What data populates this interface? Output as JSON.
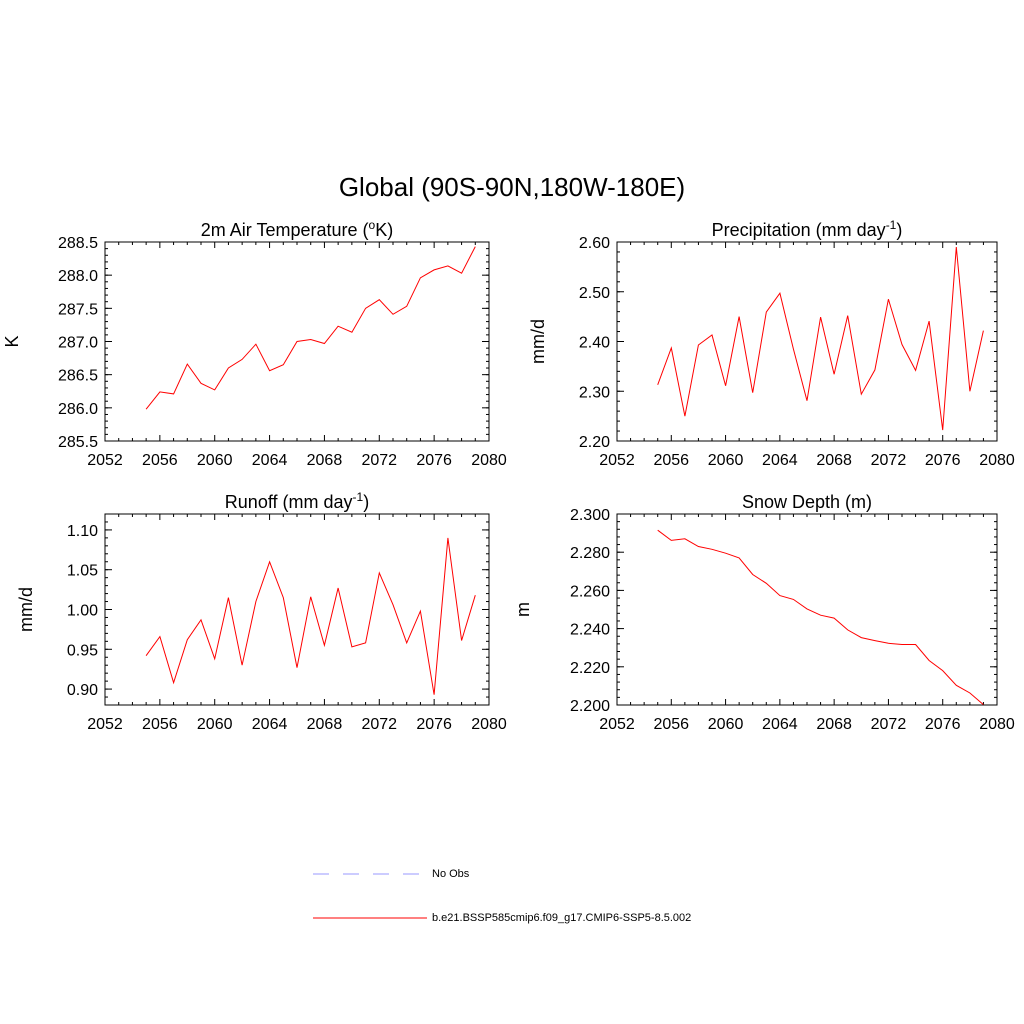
{
  "figure_title": "Global (90S-90N,180W-180E)",
  "legend": [
    {
      "label": "No Obs",
      "color": "#9999ff",
      "style": "dashed"
    },
    {
      "label": "b.e21.BSSP585cmip6.f09_g17.CMIP6-SSP5-8.5.002",
      "color": "#ff0000",
      "style": "solid"
    }
  ],
  "chart_data": [
    {
      "type": "line",
      "title": "2m Air Temperature (",
      "title_sup": "o",
      "title_end": "K)",
      "ylabel": "K",
      "xlim": [
        2052,
        2080
      ],
      "ylim": [
        285.5,
        288.5
      ],
      "xticks": [
        2052,
        2056,
        2060,
        2064,
        2068,
        2072,
        2076,
        2080
      ],
      "yticks": [
        "285.5",
        "286.0",
        "286.5",
        "287.0",
        "287.5",
        "288.0",
        "288.5"
      ],
      "x": [
        2055,
        2056,
        2057,
        2058,
        2059,
        2060,
        2061,
        2062,
        2063,
        2064,
        2065,
        2066,
        2067,
        2068,
        2069,
        2070,
        2071,
        2072,
        2073,
        2074,
        2075,
        2076,
        2077,
        2078,
        2079
      ],
      "series": [
        {
          "values": [
            285.98,
            286.24,
            286.21,
            286.66,
            286.37,
            286.27,
            286.6,
            286.73,
            286.96,
            286.56,
            286.65,
            287.0,
            287.03,
            286.97,
            287.23,
            287.14,
            287.5,
            287.63,
            287.41,
            287.53,
            287.96,
            288.08,
            288.14,
            288.03,
            288.43
          ],
          "color": "#ff0000"
        }
      ]
    },
    {
      "type": "line",
      "title": "Precipitation (mm day",
      "title_sup": "-1",
      "title_end": ")",
      "ylabel": "mm/d",
      "xlim": [
        2052,
        2080
      ],
      "ylim": [
        2.2,
        2.6
      ],
      "xticks": [
        2052,
        2056,
        2060,
        2064,
        2068,
        2072,
        2076,
        2080
      ],
      "yticks": [
        "2.20",
        "2.30",
        "2.40",
        "2.50",
        "2.60"
      ],
      "x": [
        2055,
        2056,
        2057,
        2058,
        2059,
        2060,
        2061,
        2062,
        2063,
        2064,
        2065,
        2066,
        2067,
        2068,
        2069,
        2070,
        2071,
        2072,
        2073,
        2074,
        2075,
        2076,
        2077,
        2078,
        2079
      ],
      "series": [
        {
          "values": [
            2.313,
            2.387,
            2.25,
            2.393,
            2.413,
            2.311,
            2.45,
            2.297,
            2.459,
            2.497,
            2.385,
            2.281,
            2.449,
            2.334,
            2.452,
            2.294,
            2.343,
            2.485,
            2.394,
            2.342,
            2.441,
            2.222,
            2.59,
            2.3,
            2.422
          ],
          "color": "#ff0000"
        }
      ]
    },
    {
      "type": "line",
      "title": "Runoff (mm day",
      "title_sup": "-1",
      "title_end": ")",
      "ylabel": "mm/d",
      "xlim": [
        2052,
        2080
      ],
      "ylim": [
        0.88,
        1.12
      ],
      "xticks": [
        2052,
        2056,
        2060,
        2064,
        2068,
        2072,
        2076,
        2080
      ],
      "yticks": [
        "0.90",
        "0.95",
        "1.00",
        "1.05",
        "1.10"
      ],
      "ytick_values": [
        0.9,
        0.95,
        1.0,
        1.05,
        1.1
      ],
      "x": [
        2055,
        2056,
        2057,
        2058,
        2059,
        2060,
        2061,
        2062,
        2063,
        2064,
        2065,
        2066,
        2067,
        2068,
        2069,
        2070,
        2071,
        2072,
        2073,
        2074,
        2075,
        2076,
        2077,
        2078,
        2079
      ],
      "series": [
        {
          "values": [
            0.942,
            0.966,
            0.908,
            0.962,
            0.987,
            0.938,
            1.015,
            0.93,
            1.01,
            1.06,
            1.015,
            0.927,
            1.016,
            0.955,
            1.027,
            0.953,
            0.958,
            1.046,
            1.006,
            0.958,
            0.998,
            0.893,
            1.09,
            0.961,
            1.018
          ],
          "color": "#ff0000"
        }
      ]
    },
    {
      "type": "line",
      "title": "Snow Depth (m)",
      "title_sup": "",
      "title_end": "",
      "ylabel": "m",
      "xlim": [
        2052,
        2080
      ],
      "ylim": [
        2.2,
        2.3
      ],
      "xticks": [
        2052,
        2056,
        2060,
        2064,
        2068,
        2072,
        2076,
        2080
      ],
      "yticks": [
        "2.200",
        "2.220",
        "2.240",
        "2.260",
        "2.280",
        "2.300"
      ],
      "x": [
        2055,
        2056,
        2057,
        2058,
        2059,
        2060,
        2061,
        2062,
        2063,
        2064,
        2065,
        2066,
        2067,
        2068,
        2069,
        2070,
        2071,
        2072,
        2073,
        2074,
        2075,
        2076,
        2077,
        2078,
        2079
      ],
      "series": [
        {
          "values": [
            2.2915,
            2.2862,
            2.287,
            2.283,
            2.2815,
            2.2795,
            2.277,
            2.2683,
            2.2637,
            2.2573,
            2.2553,
            2.2503,
            2.247,
            2.2455,
            2.2393,
            2.2353,
            2.2337,
            2.2323,
            2.2317,
            2.2317,
            2.2233,
            2.218,
            2.2103,
            2.2063,
            2.2002
          ],
          "color": "#ff0000"
        }
      ]
    }
  ]
}
